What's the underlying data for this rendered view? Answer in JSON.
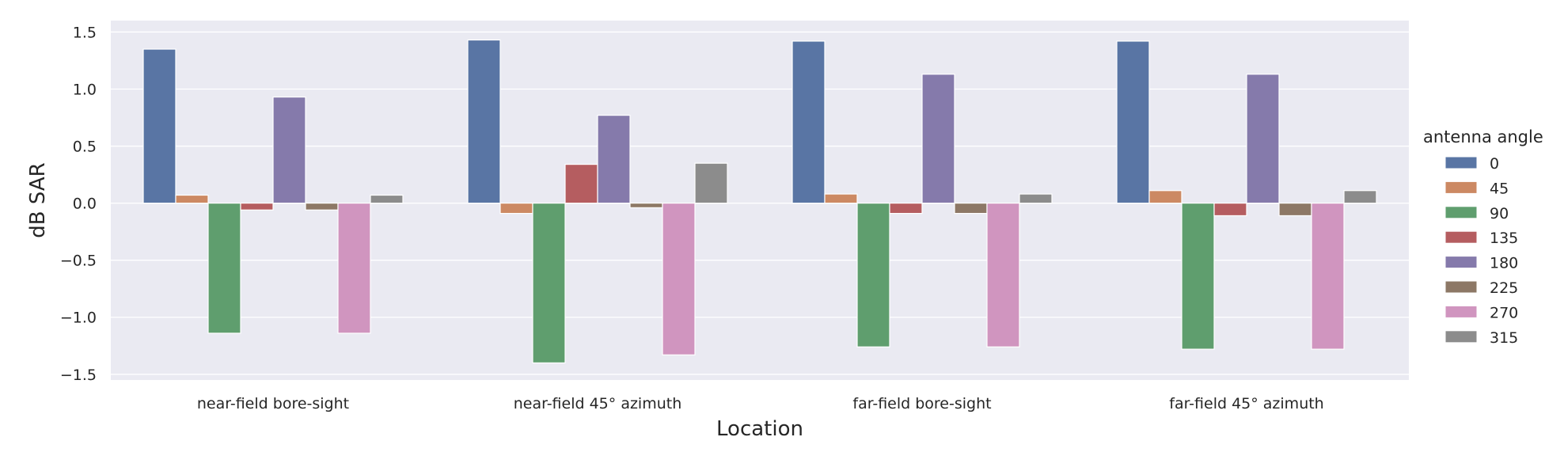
{
  "chart_data": {
    "type": "bar",
    "xlabel": "Location",
    "ylabel": "dB SAR",
    "ylim": [
      -1.55,
      1.6
    ],
    "yticks": [
      1.5,
      1.0,
      0.5,
      0.0,
      -0.5,
      -1.0,
      -1.5
    ],
    "ytick_labels": [
      "1.5",
      "1.0",
      "0.5",
      "0.0",
      "−0.5",
      "−1.0",
      "−1.5"
    ],
    "categories": [
      "near-field bore-sight",
      "near-field 45° azimuth",
      "far-field bore-sight",
      "far-field 45° azimuth"
    ],
    "grid": true,
    "legend": {
      "title": "antenna angle",
      "placement": "right"
    },
    "series": [
      {
        "name": "0",
        "color": "#5975a4",
        "values": [
          1.35,
          1.43,
          1.42,
          1.42
        ]
      },
      {
        "name": "45",
        "color": "#cc8963",
        "values": [
          0.07,
          -0.09,
          0.08,
          0.11
        ]
      },
      {
        "name": "90",
        "color": "#5f9e6e",
        "values": [
          -1.14,
          -1.4,
          -1.26,
          -1.28
        ]
      },
      {
        "name": "135",
        "color": "#b55d60",
        "values": [
          -0.06,
          0.34,
          -0.09,
          -0.11
        ]
      },
      {
        "name": "180",
        "color": "#857aab",
        "values": [
          0.93,
          0.77,
          1.13,
          1.13
        ]
      },
      {
        "name": "225",
        "color": "#8d7866",
        "values": [
          -0.06,
          -0.04,
          -0.09,
          -0.11
        ]
      },
      {
        "name": "270",
        "color": "#d095bf",
        "values": [
          -1.14,
          -1.33,
          -1.26,
          -1.28
        ]
      },
      {
        "name": "315",
        "color": "#8c8c8c",
        "values": [
          0.07,
          0.35,
          0.08,
          0.11
        ]
      }
    ]
  },
  "style": {
    "plot_background": "#eaeaf2",
    "grid_color": "#ffffff",
    "text_color": "#262626"
  }
}
